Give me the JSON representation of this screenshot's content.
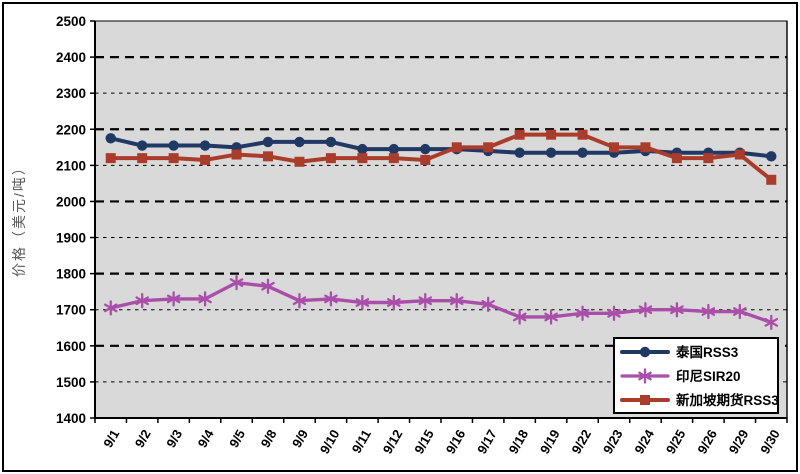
{
  "window": {
    "background": "#FFFFFF",
    "frame_border_color": "#000000"
  },
  "chart_data": {
    "type": "line",
    "title": "",
    "xlabel": "",
    "ylabel": "价格（美元/吨）",
    "ylim": [
      1400,
      2500
    ],
    "ytick_step": 100,
    "ytick_labels": [
      "1400",
      "1500",
      "1600",
      "1700",
      "1800",
      "1900",
      "2000",
      "2100",
      "2200",
      "2300",
      "2400",
      "2500"
    ],
    "grid": "horizontal dashed; bold dash every 200, thin dash every alternate 100",
    "plot_bg": "#D9D9D9",
    "axis_color": "#000000",
    "legend_position": "bottom-right-inside",
    "categories": [
      "9/1",
      "9/2",
      "9/3",
      "9/4",
      "9/5",
      "9/8",
      "9/9",
      "9/10",
      "9/11",
      "9/12",
      "9/15",
      "9/16",
      "9/17",
      "9/18",
      "9/19",
      "9/22",
      "9/23",
      "9/24",
      "9/25",
      "9/26",
      "9/29",
      "9/30"
    ],
    "series": [
      {
        "slug": "thailand-rss3",
        "name": "泰国RSS3",
        "color": "#1F3864",
        "marker": "circle",
        "values": [
          2175,
          2155,
          2155,
          2155,
          2150,
          2165,
          2165,
          2165,
          2145,
          2145,
          2145,
          2145,
          2140,
          2135,
          2135,
          2135,
          2135,
          2140,
          2135,
          2135,
          2135,
          2125
        ]
      },
      {
        "slug": "indonesia-sir20",
        "name": "印尼SIR20",
        "color": "#A94FA9",
        "marker": "asterisk",
        "values": [
          1705,
          1725,
          1730,
          1730,
          1775,
          1765,
          1725,
          1730,
          1720,
          1720,
          1725,
          1725,
          1715,
          1680,
          1680,
          1690,
          1690,
          1700,
          1700,
          1695,
          1695,
          1665
        ]
      },
      {
        "slug": "singapore-futures-rss3",
        "name": "新加坡期货RSS3",
        "color": "#A93C2B",
        "marker": "square",
        "values": [
          2120,
          2120,
          2120,
          2115,
          2130,
          2125,
          2110,
          2120,
          2120,
          2120,
          2115,
          2150,
          2150,
          2185,
          2185,
          2185,
          2150,
          2150,
          2120,
          2120,
          2130,
          2060
        ]
      }
    ]
  }
}
